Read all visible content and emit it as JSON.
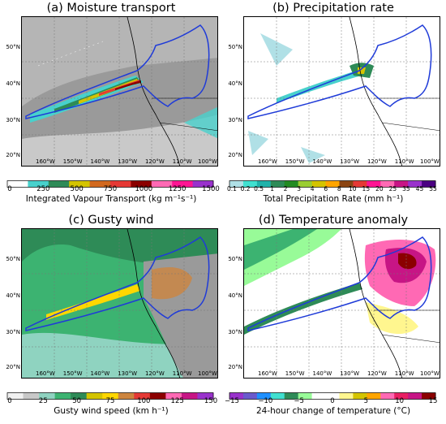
{
  "panels": [
    {
      "title": "(a) Moisture transport",
      "colorbar_ticks": [
        "0",
        "250",
        "500",
        "750",
        "1000",
        "1250",
        "1500"
      ],
      "colorbar_label": "Integrated Vapour Transport (kg m⁻¹s⁻¹)",
      "colors": [
        "#ffffff",
        "#48d1cc",
        "#2e8b57",
        "#d4c400",
        "#d2691e",
        "#e53935",
        "#8b0000",
        "#ff69b4",
        "#ff1493",
        "#9932cc"
      ]
    },
    {
      "title": "(b) Precipitation rate",
      "colorbar_ticks": [
        "0.1",
        "0.2",
        "0.5",
        "1",
        "2",
        "3",
        "4",
        "6",
        "8",
        "10",
        "15",
        "20",
        "25",
        "35",
        "45",
        "55"
      ],
      "colorbar_label": "Total Precipitation Rate (mm h⁻¹)",
      "colors": [
        "#b0e0e6",
        "#40e0d0",
        "#20b2aa",
        "#2e8b57",
        "#228b22",
        "#9acd32",
        "#d4c400",
        "#ffa500",
        "#8b4513",
        "#e53935",
        "#ff1493",
        "#ff69b4",
        "#c71585",
        "#9932cc",
        "#4b0082"
      ]
    },
    {
      "title": "(c) Gusty wind",
      "colorbar_ticks": [
        "0",
        "25",
        "50",
        "75",
        "100",
        "125",
        "150"
      ],
      "colorbar_label": "Gusty wind speed (km h⁻¹)",
      "colors": [
        "#f0f0f0",
        "#c8c8c8",
        "#8fd3c0",
        "#3cb371",
        "#2e8b57",
        "#d4c400",
        "#ffd700",
        "#cd853f",
        "#e53935",
        "#8b0000",
        "#ff69b4",
        "#c71585",
        "#9932cc"
      ]
    },
    {
      "title": "(d) Temperature anomaly",
      "colorbar_ticks": [
        "−15",
        "−10",
        "−5",
        "0",
        "5",
        "10",
        "15"
      ],
      "colorbar_label": "24-hour change of temperature (°C)",
      "colors": [
        "#9932cc",
        "#6a5acd",
        "#1e90ff",
        "#40e0d0",
        "#2e8b57",
        "#98fb98",
        "#ffffff",
        "#ffffff",
        "#fff68f",
        "#d4c400",
        "#ffa500",
        "#ff69b4",
        "#e91e63",
        "#c71585",
        "#8b0000"
      ]
    }
  ],
  "lat_labels": [
    "50°N",
    "40°N",
    "30°N",
    "20°N"
  ],
  "lon_labels": [
    "160°W",
    "150°W",
    "140°W",
    "130°W",
    "120°W",
    "110°W",
    "100°W"
  ],
  "colors": {
    "outline": "#1f3bd8",
    "coast": "#000000",
    "grid": "#777777"
  }
}
